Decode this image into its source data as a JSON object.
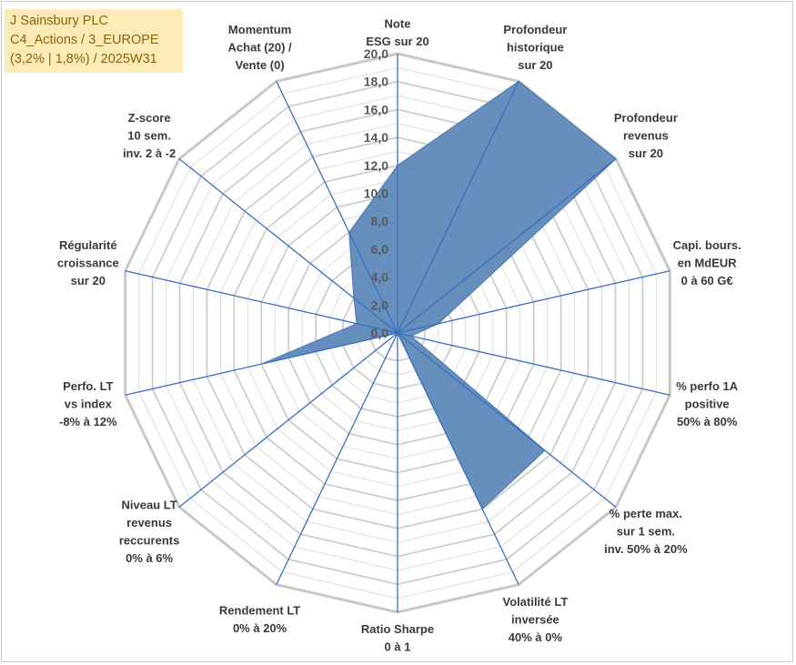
{
  "title_box": {
    "line1": "J Sainsbury PLC",
    "line2": "C4_Actions / 3_EUROPE",
    "line3": "(3,2% | 1,8%) / 2025W31"
  },
  "colors": {
    "fill": "#5a86b8",
    "axis_line": "#3a6fbf",
    "grid_major": "#c8c8c8",
    "grid_minor": "#dcdcdc",
    "title_bg": "#fdebb7",
    "title_text": "#8a6310"
  },
  "chart_data": {
    "type": "radar",
    "ylim": [
      0,
      20
    ],
    "tick_labels": [
      "0,0",
      "2,0",
      "4,0",
      "6,0",
      "8,0",
      "10,0",
      "12,0",
      "14,0",
      "16,0",
      "18,0",
      "20,0"
    ],
    "axes": [
      {
        "label": [
          "Note",
          "ESG sur 20"
        ],
        "value": 12.0
      },
      {
        "label": [
          "Profondeur",
          "historique",
          "sur 20"
        ],
        "value": 20.0
      },
      {
        "label": [
          "Profondeur",
          "revenus",
          "sur 20"
        ],
        "value": 20.0
      },
      {
        "label": [
          "Capi. bours.",
          "en MdEUR",
          "0 à 60 G€"
        ],
        "value": 3.0
      },
      {
        "label": [
          "% perfo 1A",
          "positive",
          "50% à 80%"
        ],
        "value": 1.0
      },
      {
        "label": [
          "% perte max.",
          "sur 1 sem.",
          "inv. 50% à 20%"
        ],
        "value": 13.5
      },
      {
        "label": [
          "Volatilité LT",
          "inversée",
          "40% à 0%"
        ],
        "value": 14.0
      },
      {
        "label": [
          "Ratio Sharpe",
          "0 à 1"
        ],
        "value": 0.0
      },
      {
        "label": [
          "Rendement LT",
          "0% à 20%"
        ],
        "value": 0.0
      },
      {
        "label": [
          "Niveau LT",
          "revenus",
          "reccurents",
          "0% à 6%"
        ],
        "value": 0.0
      },
      {
        "label": [
          "Perfo. LT",
          "vs index",
          "-8% à 12%"
        ],
        "value": 10.0
      },
      {
        "label": [
          "Régularité",
          "croissance",
          "sur 20"
        ],
        "value": 3.0
      },
      {
        "label": [
          "Z-score",
          "10 sem.",
          "inv. 2 à -2"
        ],
        "value": 4.0
      },
      {
        "label": [
          "Momentum",
          "Achat (20) /",
          "Vente (0)"
        ],
        "value": 8.0
      }
    ]
  }
}
